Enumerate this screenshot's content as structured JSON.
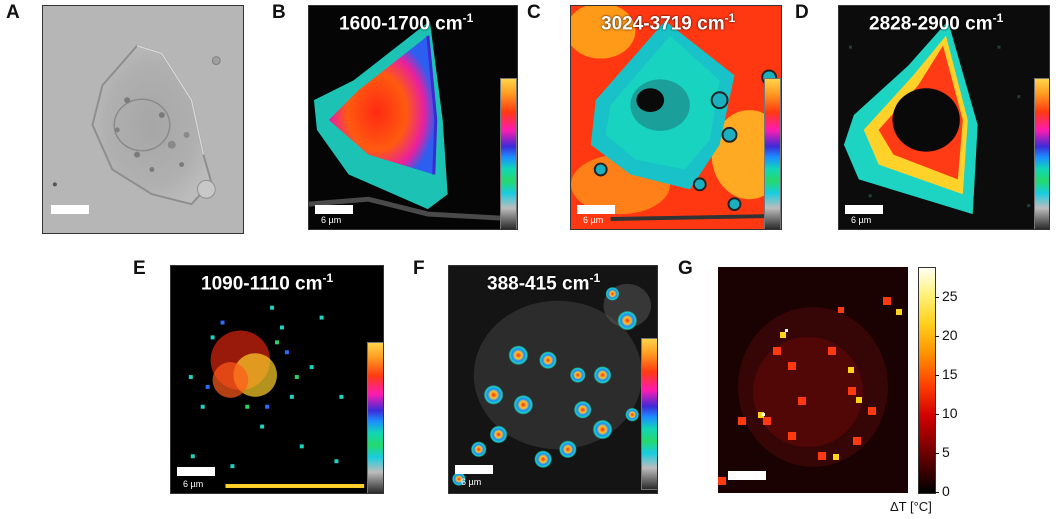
{
  "panel_labels": [
    "A",
    "B",
    "C",
    "D",
    "E",
    "F",
    "G"
  ],
  "panel_b": {
    "title": "1600-1700 cm",
    "exponent": "-1",
    "scale_label": "6 µm"
  },
  "panel_c": {
    "title": "3024-3719 cm",
    "exponent": "-1",
    "scale_label": "6 µm"
  },
  "panel_d": {
    "title": "2828-2900 cm",
    "exponent": "-1",
    "scale_label": "6 µm"
  },
  "panel_e": {
    "title": "1090-1110 cm",
    "exponent": "-1",
    "scale_label": "6 µm"
  },
  "panel_f": {
    "title": "388-415 cm",
    "exponent": "-1",
    "scale_label": "6 µm"
  },
  "panel_g": {
    "colorbar_ticks": [
      "25",
      "20",
      "15",
      "10",
      "5",
      "0"
    ],
    "colorbar_label": "ΔT [°C]"
  },
  "colors": {
    "rainbow_map": [
      "#ffd34a",
      "#ff3a12",
      "#ff1bb0",
      "#3c2bd8",
      "#11d7b6",
      "#bdbdbd",
      "#2a2a2a"
    ],
    "heat_map": [
      "#fffff2",
      "#ffcf1a",
      "#ff4000",
      "#6a0000",
      "#000000"
    ]
  }
}
